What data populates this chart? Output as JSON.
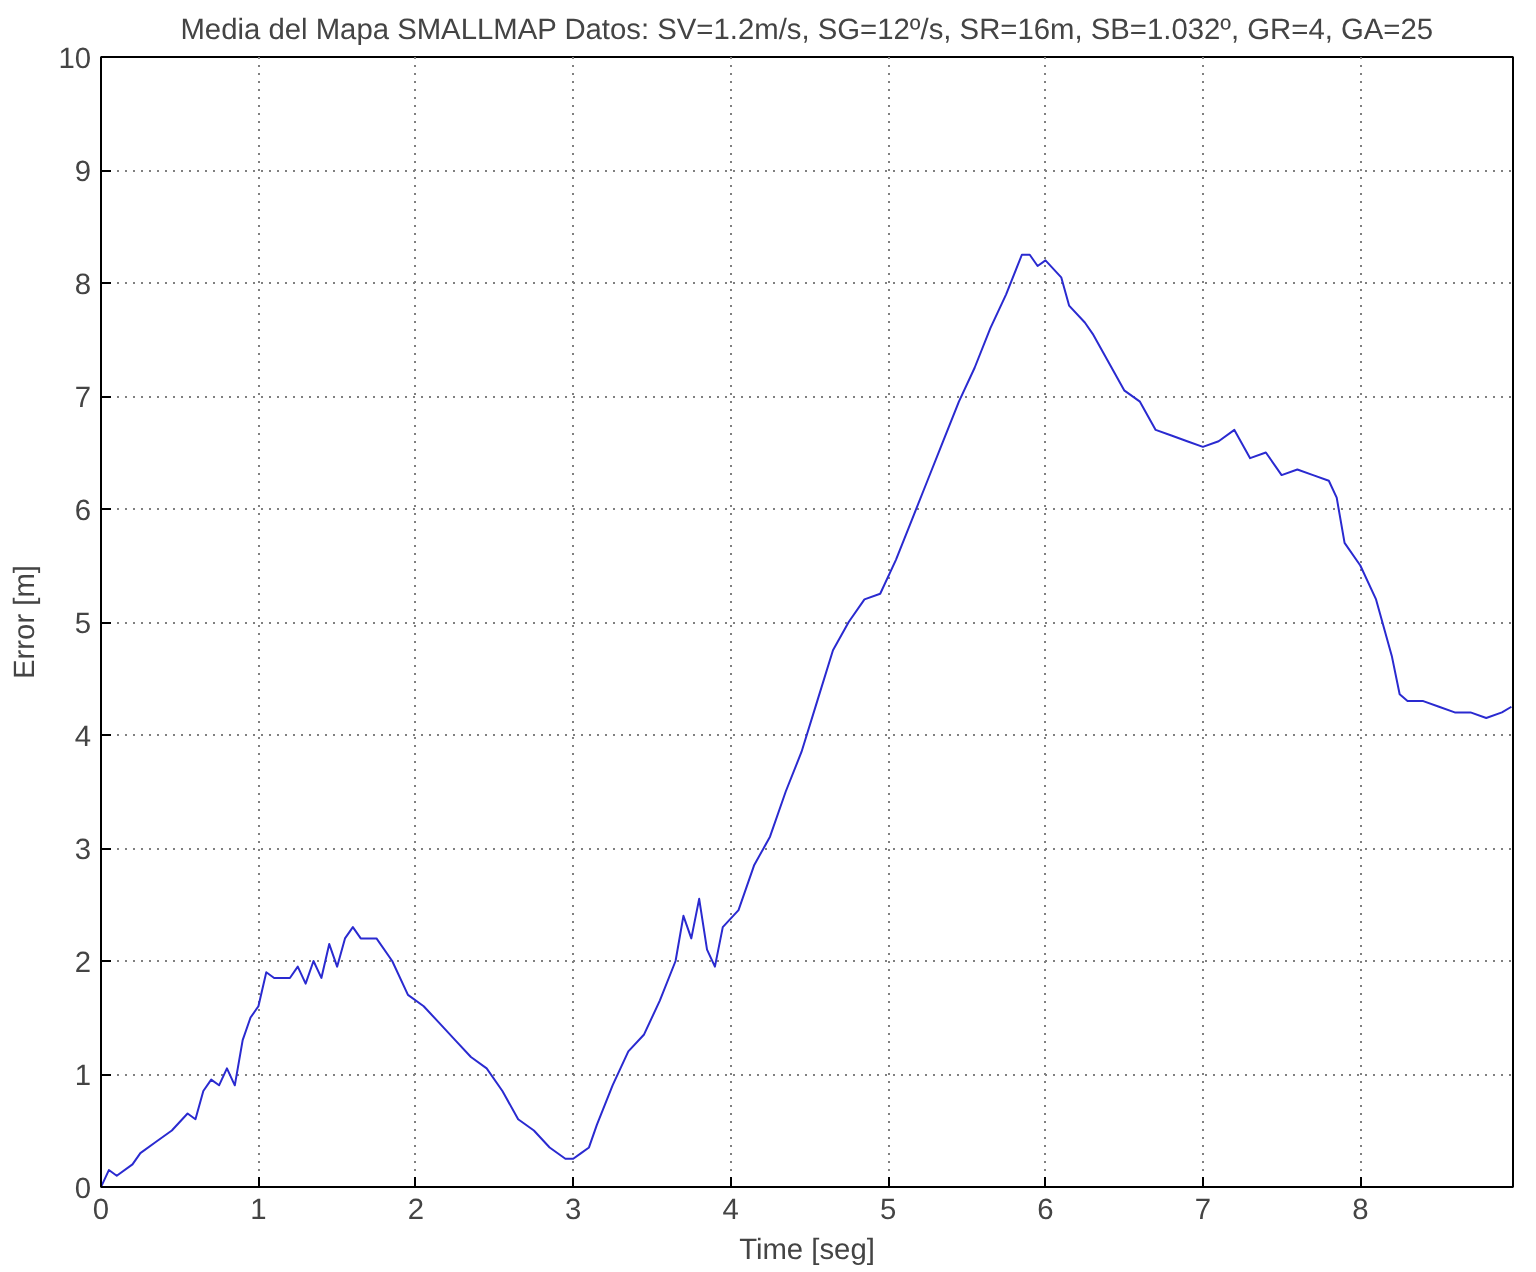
{
  "chart_data": {
    "type": "line",
    "title": "Media del Mapa SMALLMAP Datos: SV=1.2m/s, SG=12º/s, SR=16m, SB=1.032º, GR=4, GA=25",
    "xlabel": "Time [seg]",
    "ylabel": "Error [m]",
    "xlim": [
      0,
      8.97
    ],
    "ylim": [
      0,
      10
    ],
    "xticks": [
      0,
      1,
      2,
      3,
      4,
      5,
      6,
      7,
      8
    ],
    "yticks": [
      0,
      1,
      2,
      3,
      4,
      5,
      6,
      7,
      8,
      9,
      10
    ],
    "grid": true,
    "line_style": "solid",
    "x": [
      0,
      0.05,
      0.1,
      0.2,
      0.25,
      0.35,
      0.45,
      0.55,
      0.6,
      0.65,
      0.7,
      0.75,
      0.8,
      0.85,
      0.9,
      0.95,
      1.0,
      1.05,
      1.1,
      1.2,
      1.25,
      1.3,
      1.35,
      1.4,
      1.45,
      1.5,
      1.55,
      1.6,
      1.65,
      1.75,
      1.85,
      1.95,
      2.05,
      2.15,
      2.25,
      2.35,
      2.45,
      2.55,
      2.65,
      2.75,
      2.85,
      2.95,
      3.0,
      3.05,
      3.1,
      3.15,
      3.25,
      3.35,
      3.45,
      3.55,
      3.65,
      3.7,
      3.75,
      3.8,
      3.85,
      3.9,
      3.95,
      4.05,
      4.15,
      4.25,
      4.35,
      4.45,
      4.55,
      4.65,
      4.75,
      4.85,
      4.95,
      5.05,
      5.15,
      5.25,
      5.35,
      5.45,
      5.55,
      5.65,
      5.75,
      5.85,
      5.9,
      5.95,
      6.0,
      6.1,
      6.15,
      6.25,
      6.3,
      6.4,
      6.5,
      6.6,
      6.7,
      6.8,
      6.9,
      7.0,
      7.1,
      7.2,
      7.3,
      7.4,
      7.5,
      7.6,
      7.7,
      7.8,
      7.85,
      7.9,
      8.0,
      8.1,
      8.2,
      8.25,
      8.3,
      8.4,
      8.5,
      8.6,
      8.7,
      8.8,
      8.9,
      8.96
    ],
    "series": [
      {
        "color": "#2a2ad0",
        "values": [
          0,
          0.15,
          0.1,
          0.2,
          0.3,
          0.4,
          0.5,
          0.65,
          0.6,
          0.85,
          0.95,
          0.9,
          1.05,
          0.9,
          1.3,
          1.5,
          1.6,
          1.9,
          1.85,
          1.85,
          1.95,
          1.8,
          2.0,
          1.85,
          2.15,
          1.95,
          2.2,
          2.3,
          2.2,
          2.2,
          2.0,
          1.7,
          1.6,
          1.45,
          1.3,
          1.15,
          1.05,
          0.85,
          0.6,
          0.5,
          0.35,
          0.25,
          0.25,
          0.3,
          0.35,
          0.55,
          0.9,
          1.2,
          1.35,
          1.65,
          2.0,
          2.4,
          2.2,
          2.55,
          2.1,
          1.95,
          2.3,
          2.45,
          2.85,
          3.1,
          3.5,
          3.85,
          4.3,
          4.75,
          5.0,
          5.2,
          5.25,
          5.55,
          5.9,
          6.25,
          6.6,
          6.95,
          7.25,
          7.6,
          7.9,
          8.25,
          8.25,
          8.15,
          8.2,
          8.05,
          7.8,
          7.65,
          7.55,
          7.3,
          7.05,
          6.95,
          6.7,
          6.65,
          6.6,
          6.55,
          6.6,
          6.7,
          6.45,
          6.5,
          6.3,
          6.35,
          6.3,
          6.25,
          6.1,
          5.7,
          5.5,
          5.2,
          4.7,
          4.36,
          4.3,
          4.3,
          4.25,
          4.2,
          4.2,
          4.15,
          4.2,
          4.25
        ]
      }
    ]
  }
}
